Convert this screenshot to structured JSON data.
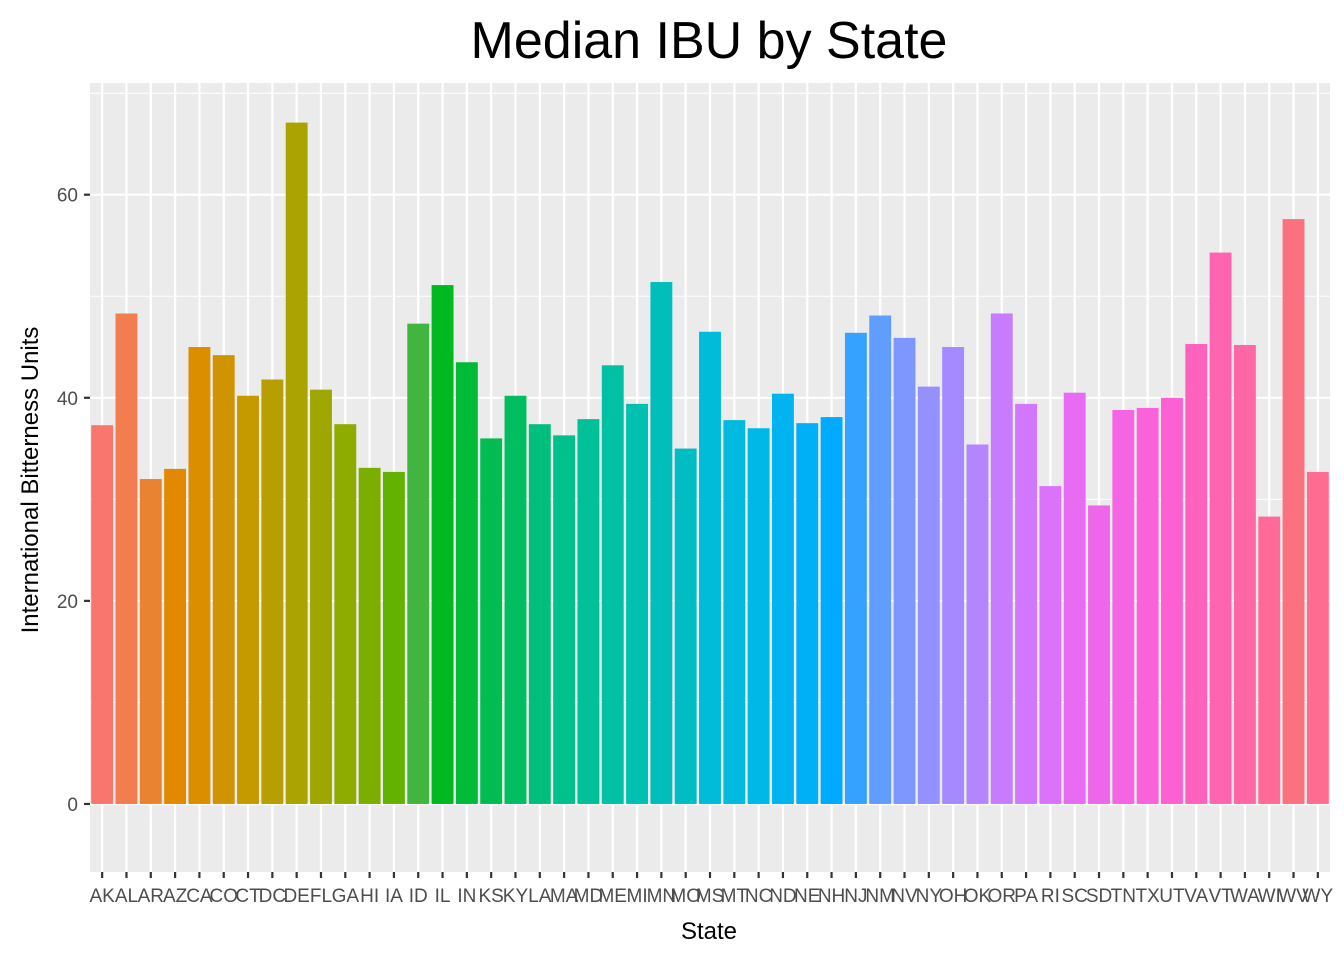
{
  "chart_data": {
    "type": "bar",
    "title": "Median IBU by State",
    "xlabel": "State",
    "ylabel": "International Bitterness Units",
    "ylim": [
      -6.7,
      71
    ],
    "yticks": [
      0,
      20,
      40,
      60
    ],
    "grid": true,
    "legend": "none",
    "panel_background": "#ebebeb",
    "categories": [
      "AK",
      "AL",
      "AR",
      "AZ",
      "CA",
      "CO",
      "CT",
      "DC",
      "DE",
      "FL",
      "GA",
      "HI",
      "IA",
      "ID",
      "IL",
      "IN",
      "KS",
      "KY",
      "LA",
      "MA",
      "MD",
      "ME",
      "MI",
      "MN",
      "MO",
      "MS",
      "MT",
      "NC",
      "ND",
      "NE",
      "NH",
      "NJ",
      "NM",
      "NV",
      "NY",
      "OH",
      "OK",
      "OR",
      "PA",
      "RI",
      "SC",
      "SD",
      "TN",
      "TX",
      "UT",
      "VA",
      "VT",
      "WA",
      "WI",
      "WV",
      "WY"
    ],
    "values": [
      37.3,
      48.3,
      32.0,
      33.0,
      45.0,
      44.2,
      40.2,
      41.8,
      67.1,
      40.8,
      37.4,
      33.1,
      32.7,
      47.3,
      51.1,
      43.5,
      36.0,
      40.2,
      37.4,
      36.3,
      37.9,
      43.2,
      39.4,
      51.4,
      35.0,
      46.5,
      37.8,
      37.0,
      40.4,
      37.5,
      38.1,
      46.4,
      48.1,
      45.9,
      41.1,
      45.0,
      35.4,
      48.3,
      39.4,
      31.3,
      40.5,
      29.4,
      38.8,
      39.0,
      40.0,
      45.3,
      54.3,
      45.2,
      28.3,
      57.6,
      32.7
    ],
    "colors": [
      "#F8766D",
      "#F17D51",
      "#EA8331",
      "#E38900",
      "#DB8E00",
      "#D09400",
      "#C49A00",
      "#B79F00",
      "#AAA300",
      "#9DA700",
      "#8EAB00",
      "#7CAE00",
      "#64B200",
      "#42B540",
      "#00B81F",
      "#00BA38",
      "#00BC51",
      "#00BD5F",
      "#00BF7D",
      "#00C08B",
      "#00C097",
      "#00C1A3",
      "#00C0AF",
      "#00BFBB",
      "#00BDC4",
      "#00BCD8",
      "#00BAE0",
      "#00B8E7",
      "#00B4EF",
      "#00B0F6",
      "#00ABFD",
      "#35A2FF",
      "#619CFF",
      "#7D97FF",
      "#9590FF",
      "#A58AFF",
      "#B385FF",
      "#C77CFF",
      "#D277FF",
      "#DC71FA",
      "#E76BF3",
      "#EE67EB",
      "#F564E3",
      "#FA62D9",
      "#FD61D1",
      "#FF62BC",
      "#FF64B0",
      "#FF67A4",
      "#FF6A98",
      "#FC717F",
      "#FF6C91"
    ]
  }
}
